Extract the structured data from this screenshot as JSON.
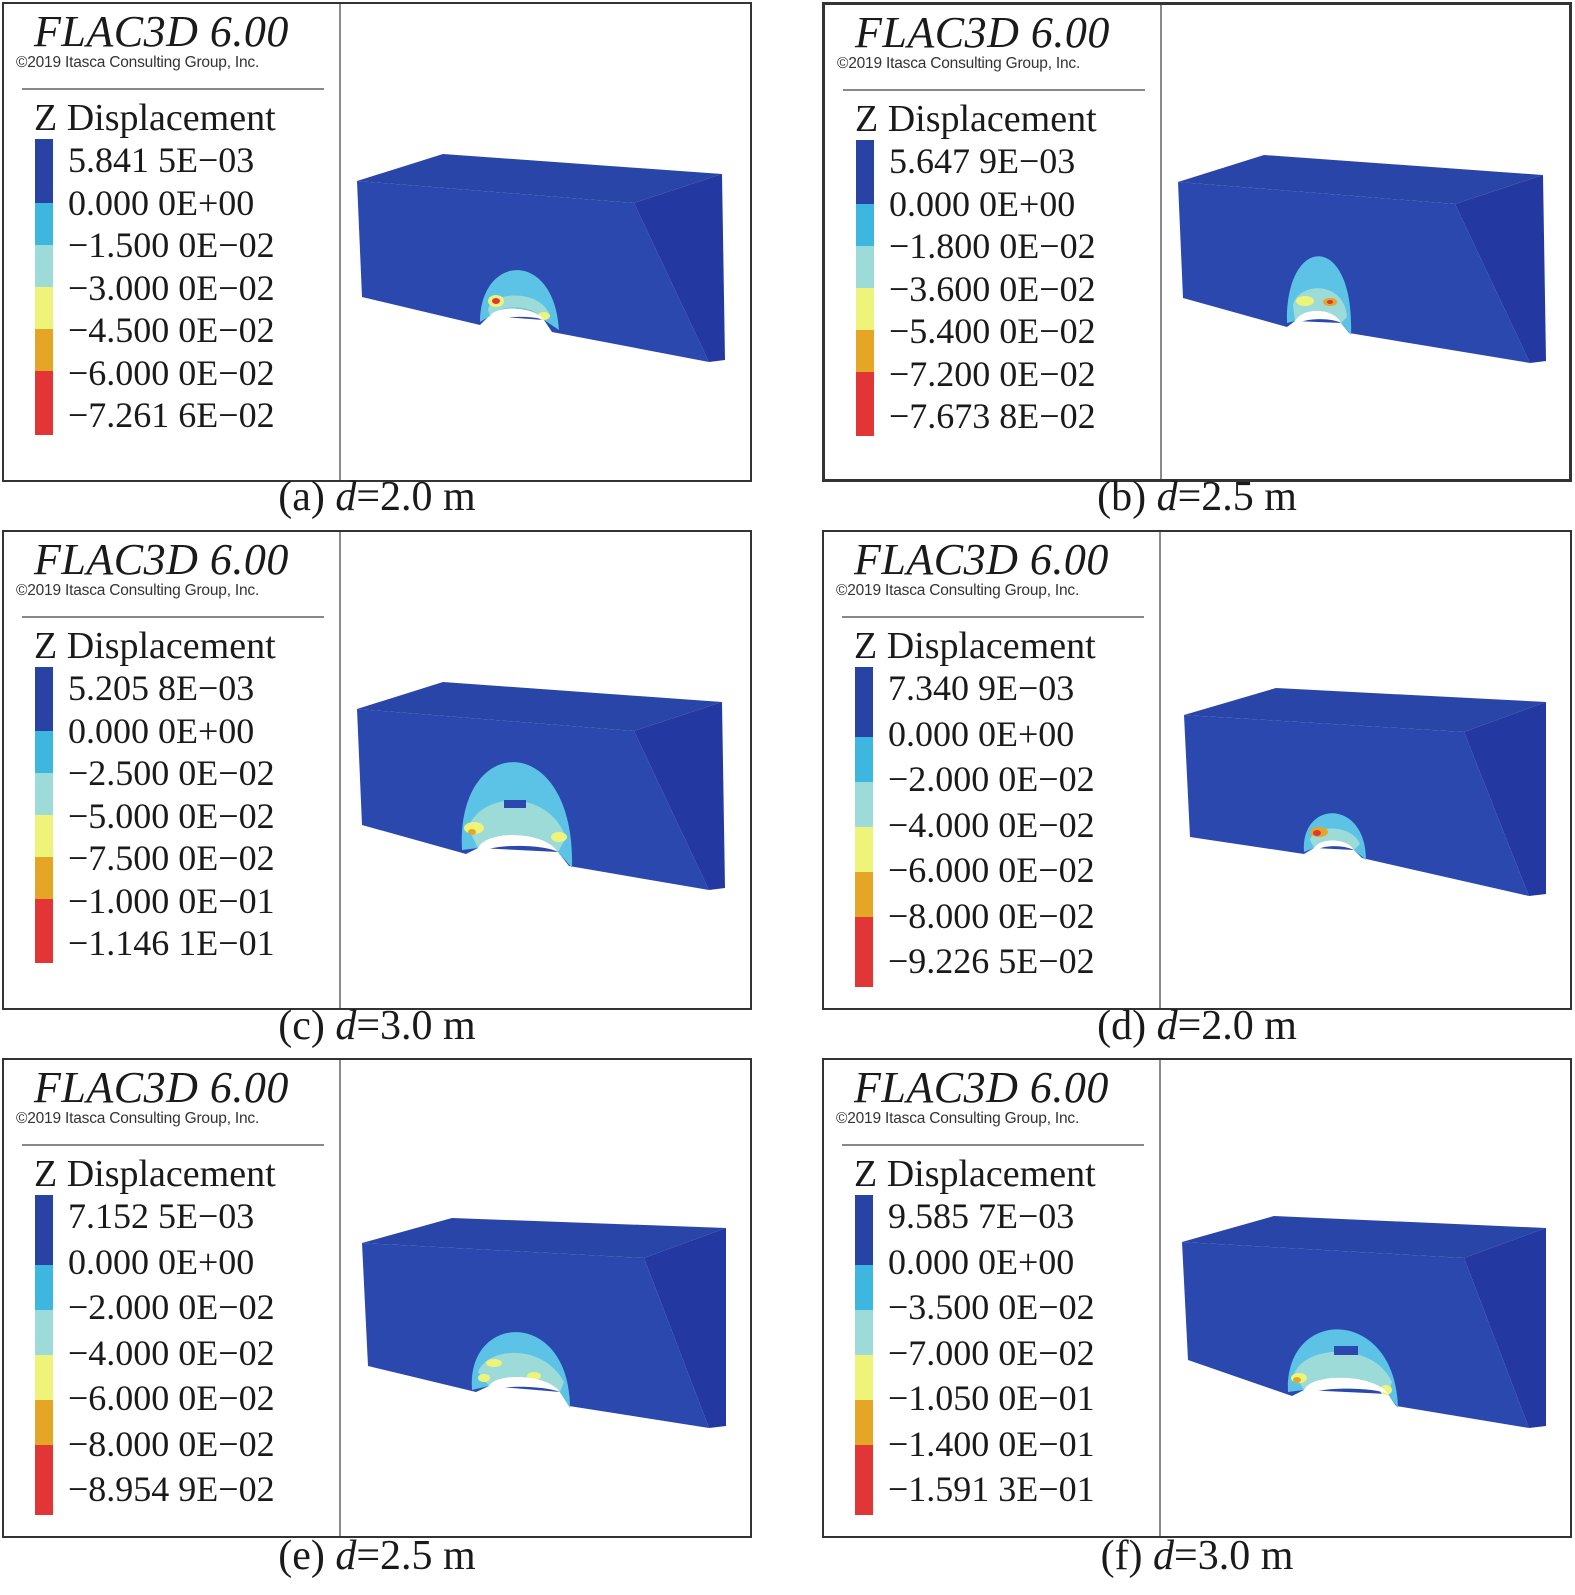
{
  "colors": {
    "c0": "#2843a3",
    "c1": "#3db7e0",
    "c2": "#9ddbd9",
    "c3": "#eef47a",
    "c4": "#e5a625",
    "c5": "#e23535"
  },
  "panels": [
    {
      "title": "FLAC3D 6.00",
      "copyright": "©2019 Itasca Consulting Group, Inc.",
      "legend_title": "Z Displacement",
      "legend_values": [
        "5.841 5E−03",
        "0.000 0E+00",
        "−1.500 0E−02",
        "−3.000 0E−02",
        "−4.500 0E−02",
        "−6.000 0E−02",
        "−7.261 6E−02"
      ],
      "caption_prefix": "(a) ",
      "caption_var": "d",
      "caption_rest": "=2.0 m"
    },
    {
      "title": "FLAC3D 6.00",
      "copyright": "©2019 Itasca Consulting Group, Inc.",
      "legend_title": "Z Displacement",
      "legend_values": [
        "5.647 9E−03",
        "0.000 0E+00",
        "−1.800 0E−02",
        "−3.600 0E−02",
        "−5.400 0E−02",
        "−7.200 0E−02",
        "−7.673 8E−02"
      ],
      "caption_prefix": "(b) ",
      "caption_var": "d",
      "caption_rest": "=2.5 m"
    },
    {
      "title": "FLAC3D 6.00",
      "copyright": "©2019 Itasca Consulting Group, Inc.",
      "legend_title": "Z Displacement",
      "legend_values": [
        "5.205 8E−03",
        "0.000 0E+00",
        "−2.500 0E−02",
        "−5.000 0E−02",
        "−7.500 0E−02",
        "−1.000 0E−01",
        "−1.146 1E−01"
      ],
      "caption_prefix": "(c) ",
      "caption_var": "d",
      "caption_rest": "=3.0 m"
    },
    {
      "title": "FLAC3D 6.00",
      "copyright": "©2019 Itasca Consulting Group, Inc.",
      "legend_title": "Z Displacement",
      "legend_values": [
        "7.340 9E−03",
        "0.000 0E+00",
        "−2.000 0E−02",
        "−4.000 0E−02",
        "−6.000 0E−02",
        "−8.000 0E−02",
        "−9.226 5E−02"
      ],
      "caption_prefix": "(d) ",
      "caption_var": "d",
      "caption_rest": "=2.0 m"
    },
    {
      "title": "FLAC3D 6.00",
      "copyright": "©2019 Itasca Consulting Group, Inc.",
      "legend_title": "Z Displacement",
      "legend_values": [
        "7.152 5E−03",
        "0.000 0E+00",
        "−2.000 0E−02",
        "−4.000 0E−02",
        "−6.000 0E−02",
        "−8.000 0E−02",
        "−8.954 9E−02"
      ],
      "caption_prefix": "(e) ",
      "caption_var": "d",
      "caption_rest": "=2.5 m"
    },
    {
      "title": "FLAC3D 6.00",
      "copyright": "©2019 Itasca Consulting Group, Inc.",
      "legend_title": "Z Displacement",
      "legend_values": [
        "9.585 7E−03",
        "0.000 0E+00",
        "−3.500 0E−02",
        "−7.000 0E−02",
        "−1.050 0E−01",
        "−1.400 0E−01",
        "−1.591 3E−01"
      ],
      "caption_prefix": "(f) ",
      "caption_var": "d",
      "caption_rest": "=3.0 m"
    }
  ]
}
